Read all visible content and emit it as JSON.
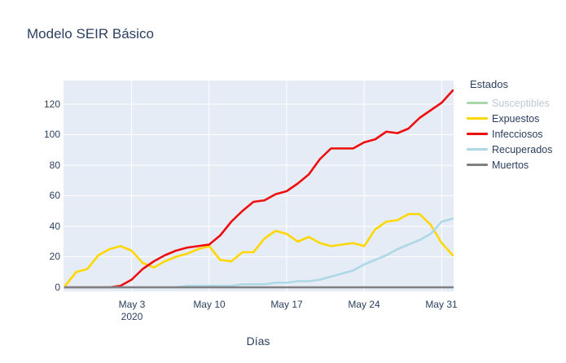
{
  "title": "Modelo SEIR Básico",
  "colors": {
    "text": "#2a3f5f",
    "legend_muted_text": "#bec8d9",
    "plot_bg": "#e5ecf6",
    "grid": "#ffffff"
  },
  "legend": {
    "title": "Estados",
    "items": [
      {
        "label": "Susceptibles",
        "color": "#a9d8a9",
        "hidden": true
      },
      {
        "label": "Expuestos",
        "color": "#ffd700",
        "hidden": false
      },
      {
        "label": "Infecciosos",
        "color": "#ee0e0e",
        "hidden": false
      },
      {
        "label": "Recuperados",
        "color": "#add8e6",
        "hidden": false
      },
      {
        "label": "Muertos",
        "color": "#808080",
        "hidden": false
      }
    ]
  },
  "chart_data": {
    "type": "line",
    "title": "Modelo SEIR Básico",
    "xlabel": "Días",
    "ylabel": "",
    "legend_title": "Estados",
    "legend_position": "right",
    "grid": true,
    "plot_bg": "#e5ecf6",
    "ylim": [
      -3,
      135
    ],
    "yticks": [
      0,
      20,
      40,
      60,
      80,
      100,
      120
    ],
    "xticks": [
      {
        "label": "May 3",
        "year": "2020",
        "day_index": 6
      },
      {
        "label": "May 10",
        "year": "",
        "day_index": 13
      },
      {
        "label": "May 17",
        "year": "",
        "day_index": 20
      },
      {
        "label": "May 24",
        "year": "",
        "day_index": 27
      },
      {
        "label": "May 31",
        "year": "",
        "day_index": 34
      }
    ],
    "x_dates": [
      "2020-04-27",
      "2020-04-28",
      "2020-04-29",
      "2020-04-30",
      "2020-05-01",
      "2020-05-02",
      "2020-05-03",
      "2020-05-04",
      "2020-05-05",
      "2020-05-06",
      "2020-05-07",
      "2020-05-08",
      "2020-05-09",
      "2020-05-10",
      "2020-05-11",
      "2020-05-12",
      "2020-05-13",
      "2020-05-14",
      "2020-05-15",
      "2020-05-16",
      "2020-05-17",
      "2020-05-18",
      "2020-05-19",
      "2020-05-20",
      "2020-05-21",
      "2020-05-22",
      "2020-05-23",
      "2020-05-24",
      "2020-05-25",
      "2020-05-26",
      "2020-05-27",
      "2020-05-28",
      "2020-05-29",
      "2020-05-30",
      "2020-05-31",
      "2020-06-01"
    ],
    "series": [
      {
        "name": "Susceptibles",
        "color": "#a9d8a9",
        "hidden": true,
        "values": []
      },
      {
        "name": "Expuestos",
        "color": "#ffd700",
        "hidden": false,
        "values": [
          1,
          10,
          12,
          21,
          25,
          27,
          24,
          16,
          13,
          17,
          20,
          22,
          25,
          27,
          18,
          17,
          23,
          23,
          32,
          37,
          35,
          30,
          33,
          29,
          27,
          28,
          29,
          27,
          38,
          43,
          44,
          48,
          48,
          41,
          29,
          21
        ]
      },
      {
        "name": "Infecciosos",
        "color": "#ee0e0e",
        "hidden": false,
        "values": [
          0,
          0,
          0,
          0,
          0,
          1,
          5,
          12,
          17,
          21,
          24,
          26,
          27,
          28,
          34,
          43,
          50,
          56,
          57,
          61,
          63,
          68,
          74,
          84,
          91,
          91,
          91,
          95,
          97,
          102,
          101,
          104,
          111,
          116,
          121,
          129
        ]
      },
      {
        "name": "Recuperados",
        "color": "#add8e6",
        "hidden": false,
        "values": [
          0,
          0,
          0,
          0,
          0,
          0,
          0,
          0,
          0,
          0,
          0,
          1,
          1,
          1,
          1,
          1,
          2,
          2,
          2,
          3,
          3,
          4,
          4,
          5,
          7,
          9,
          11,
          15,
          18,
          21,
          25,
          28,
          31,
          35,
          43,
          45
        ]
      },
      {
        "name": "Muertos",
        "color": "#808080",
        "hidden": false,
        "values": [
          0,
          0,
          0,
          0,
          0,
          0,
          0,
          0,
          0,
          0,
          0,
          0,
          0,
          0,
          0,
          0,
          0,
          0,
          0,
          0,
          0,
          0,
          0,
          0,
          0,
          0,
          0,
          0,
          0,
          0,
          0,
          0,
          0,
          0,
          0,
          0
        ]
      }
    ]
  }
}
